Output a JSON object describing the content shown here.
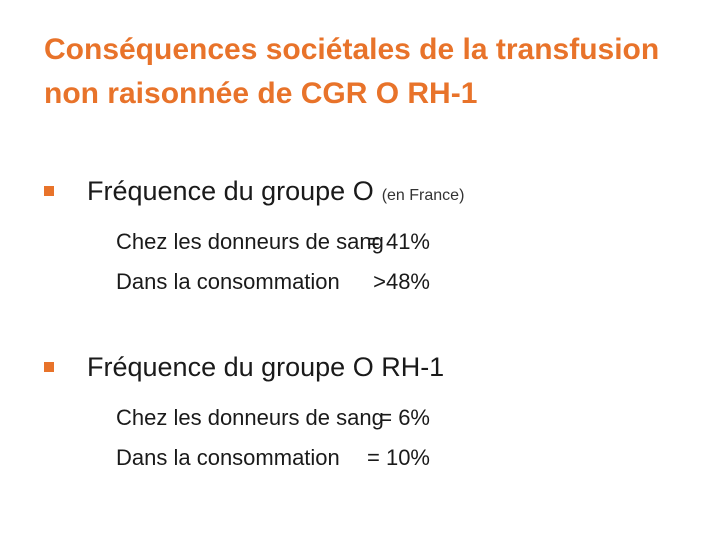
{
  "title": {
    "line1": "Conséquences sociétales de la transfusion",
    "line2": "non raisonnée de CGR O RH-1"
  },
  "colors": {
    "accent": "#e8732a",
    "text": "#1a1a1a"
  },
  "sections": [
    {
      "heading": "Fréquence du groupe O",
      "note": "(en France)",
      "rows": [
        {
          "label": "Chez les donneurs de sang",
          "value": "= 41%"
        },
        {
          "label": "Dans la consommation",
          "value": ">48%"
        }
      ]
    },
    {
      "heading": "Fréquence du groupe O RH-1",
      "note": "",
      "rows": [
        {
          "label": "Chez les donneurs de sang",
          "value": "= 6%"
        },
        {
          "label": "Dans la consommation",
          "value": "= 10%"
        }
      ]
    }
  ]
}
